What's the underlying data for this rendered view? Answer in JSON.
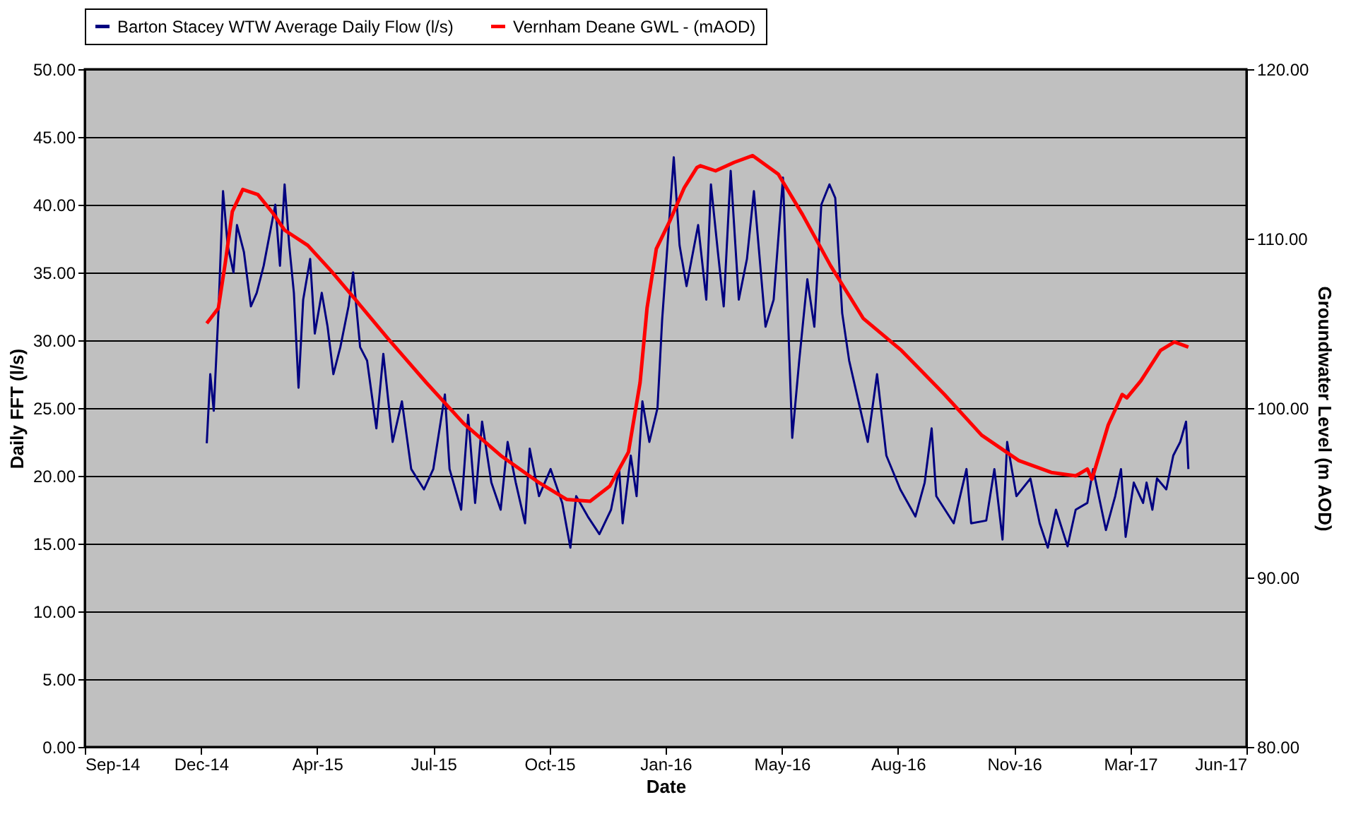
{
  "chart_data": {
    "type": "line",
    "xlabel": "Date",
    "ylabel": "Daily FFT (l/s)",
    "y2label": "Groundwater Level (m AOD)",
    "xlim": [
      "2014-09-15",
      "2017-06-11"
    ],
    "xticks": [
      {
        "value": "2014-09-15",
        "label": "Sep-14"
      },
      {
        "value": "2014-12-24",
        "label": "Dec-14"
      },
      {
        "value": "2015-04-03",
        "label": "Apr-15"
      },
      {
        "value": "2015-07-12",
        "label": "Jul-15"
      },
      {
        "value": "2015-10-20",
        "label": "Oct-15"
      },
      {
        "value": "2016-01-28",
        "label": "Jan-16"
      },
      {
        "value": "2016-05-07",
        "label": "May-16"
      },
      {
        "value": "2016-08-15",
        "label": "Aug-16"
      },
      {
        "value": "2016-11-23",
        "label": "Nov-16"
      },
      {
        "value": "2017-03-03",
        "label": "Mar-17"
      },
      {
        "value": "2017-06-11",
        "label": "Jun-17"
      }
    ],
    "ylim": [
      0,
      50
    ],
    "yticks": [
      {
        "value": 0,
        "label": "0.00"
      },
      {
        "value": 5,
        "label": "5.00"
      },
      {
        "value": 10,
        "label": "10.00"
      },
      {
        "value": 15,
        "label": "15.00"
      },
      {
        "value": 20,
        "label": "20.00"
      },
      {
        "value": 25,
        "label": "25.00"
      },
      {
        "value": 30,
        "label": "30.00"
      },
      {
        "value": 35,
        "label": "35.00"
      },
      {
        "value": 40,
        "label": "40.00"
      },
      {
        "value": 45,
        "label": "45.00"
      },
      {
        "value": 50,
        "label": "50.00"
      }
    ],
    "y2lim": [
      80,
      120
    ],
    "y2ticks": [
      {
        "value": 80,
        "label": "80.00"
      },
      {
        "value": 90,
        "label": "90.00"
      },
      {
        "value": 100,
        "label": "100.00"
      },
      {
        "value": 110,
        "label": "110.00"
      },
      {
        "value": 120,
        "label": "120.00"
      }
    ],
    "grid": "y",
    "legend": "top",
    "series": [
      {
        "name": "Barton Stacey WTW Average Daily Flow (l/s)",
        "color": "#000080",
        "x": [
          "2014-12-29",
          "2015-01-01",
          "2015-01-04",
          "2015-01-08",
          "2015-01-12",
          "2015-01-16",
          "2015-01-21",
          "2015-01-24",
          "2015-01-30",
          "2015-02-05",
          "2015-02-10",
          "2015-02-16",
          "2015-02-26",
          "2015-03-02",
          "2015-03-06",
          "2015-03-10",
          "2015-03-14",
          "2015-03-18",
          "2015-03-22",
          "2015-03-28",
          "2015-04-01",
          "2015-04-07",
          "2015-04-12",
          "2015-04-17",
          "2015-04-23",
          "2015-04-30",
          "2015-05-04",
          "2015-05-10",
          "2015-05-16",
          "2015-05-24",
          "2015-05-30",
          "2015-06-07",
          "2015-06-15",
          "2015-06-23",
          "2015-07-04",
          "2015-07-12",
          "2015-07-22",
          "2015-07-26",
          "2015-08-05",
          "2015-08-11",
          "2015-08-17",
          "2015-08-23",
          "2015-08-31",
          "2015-09-08",
          "2015-09-14",
          "2015-09-21",
          "2015-09-29",
          "2015-10-03",
          "2015-10-11",
          "2015-10-21",
          "2015-10-31",
          "2015-11-07",
          "2015-11-12",
          "2015-11-22",
          "2015-12-02",
          "2015-12-12",
          "2015-12-19",
          "2015-12-22",
          "2015-12-29",
          "2016-01-03",
          "2016-01-08",
          "2016-01-14",
          "2016-01-21",
          "2016-01-25",
          "2016-01-30",
          "2016-02-04",
          "2016-02-09",
          "2016-02-15",
          "2016-02-25",
          "2016-03-03",
          "2016-03-07",
          "2016-03-13",
          "2016-03-18",
          "2016-03-24",
          "2016-03-31",
          "2016-04-07",
          "2016-04-13",
          "2016-04-23",
          "2016-04-30",
          "2016-05-08",
          "2016-05-12",
          "2016-05-16",
          "2016-05-22",
          "2016-05-29",
          "2016-06-04",
          "2016-06-10",
          "2016-06-17",
          "2016-06-22",
          "2016-06-28",
          "2016-07-04",
          "2016-07-12",
          "2016-07-20",
          "2016-07-28",
          "2016-08-05",
          "2016-08-17",
          "2016-08-30",
          "2016-09-07",
          "2016-09-13",
          "2016-09-17",
          "2016-10-02",
          "2016-10-13",
          "2016-10-17",
          "2016-10-30",
          "2016-11-06",
          "2016-11-13",
          "2016-11-17",
          "2016-11-25",
          "2016-12-07",
          "2016-12-15",
          "2016-12-22",
          "2016-12-29",
          "2017-01-08",
          "2017-01-15",
          "2017-01-25",
          "2017-01-30",
          "2017-02-10",
          "2017-02-18",
          "2017-02-23",
          "2017-02-27",
          "2017-03-06",
          "2017-03-14",
          "2017-03-17",
          "2017-03-22",
          "2017-03-26",
          "2017-04-03",
          "2017-04-09",
          "2017-04-15",
          "2017-04-20",
          "2017-04-22"
        ],
        "values": [
          22.4,
          27.5,
          24.8,
          32,
          41,
          37,
          35,
          38.5,
          36.5,
          32.5,
          33.5,
          35.5,
          40,
          35.5,
          41.5,
          37,
          33.5,
          26.5,
          33,
          36,
          30.5,
          33.5,
          31,
          27.5,
          29.5,
          32.5,
          35,
          29.5,
          28.5,
          23.5,
          29,
          22.5,
          25.5,
          20.5,
          19,
          20.5,
          26,
          20.5,
          17.5,
          24.5,
          18,
          24,
          19.5,
          17.5,
          22.5,
          19.5,
          16.5,
          22,
          18.5,
          20.5,
          18,
          14.7,
          18.5,
          17,
          15.7,
          17.5,
          20.5,
          16.5,
          21.5,
          18.5,
          25.5,
          22.5,
          25,
          31.5,
          37.5,
          43.5,
          37,
          34,
          38.5,
          33,
          41.5,
          36.5,
          32.5,
          42.5,
          33,
          36,
          41,
          31,
          33,
          42,
          32.5,
          22.8,
          28.5,
          34.5,
          31,
          40,
          41.5,
          40.5,
          32,
          28.5,
          25.5,
          22.5,
          27.5,
          21.5,
          19,
          17,
          19.5,
          23.5,
          18.5,
          16.5,
          20.5,
          16.5,
          16.7,
          20.5,
          15.3,
          22.5,
          18.5,
          19.8,
          16.5,
          14.7,
          17.5,
          14.8,
          17.5,
          18,
          20.5,
          16,
          18.5,
          20.5,
          15.5,
          19.5,
          18,
          19.5,
          17.5,
          19.8,
          19,
          21.5,
          22.5,
          24,
          20.5
        ]
      },
      {
        "name": "Vernham Deane GWL - (mAOD)",
        "color": "#ff0000",
        "axis": "y2",
        "x": [
          "2014-12-29",
          "2015-01-08",
          "2015-01-14",
          "2015-01-20",
          "2015-01-29",
          "2015-02-11",
          "2015-02-24",
          "2015-03-06",
          "2015-03-26",
          "2015-04-15",
          "2015-05-06",
          "2015-06-03",
          "2015-07-06",
          "2015-08-07",
          "2015-09-08",
          "2015-10-11",
          "2015-11-04",
          "2015-11-24",
          "2015-12-11",
          "2015-12-27",
          "2016-01-06",
          "2016-01-12",
          "2016-01-20",
          "2016-02-01",
          "2016-02-13",
          "2016-02-24",
          "2016-02-27",
          "2016-03-11",
          "2016-03-27",
          "2016-04-12",
          "2016-05-04",
          "2016-05-25",
          "2016-06-18",
          "2016-07-16",
          "2016-08-18",
          "2016-09-24",
          "2016-10-26",
          "2016-11-27",
          "2016-12-25",
          "2017-01-15",
          "2017-01-25",
          "2017-01-29",
          "2017-02-12",
          "2017-02-24",
          "2017-02-28",
          "2017-03-12",
          "2017-03-29",
          "2017-04-10",
          "2017-04-22"
        ],
        "values": [
          105.0,
          105.9,
          108.6,
          111.6,
          112.9,
          112.6,
          111.5,
          110.5,
          109.6,
          108.1,
          106.4,
          104.1,
          101.5,
          99.1,
          97.2,
          95.6,
          94.6,
          94.5,
          95.4,
          97.4,
          101.5,
          105.9,
          109.4,
          111.1,
          113.0,
          114.2,
          114.3,
          114.0,
          114.5,
          114.9,
          113.8,
          111.4,
          108.4,
          105.3,
          103.4,
          100.8,
          98.4,
          96.9,
          96.2,
          96.0,
          96.4,
          95.8,
          99.0,
          100.8,
          100.6,
          101.6,
          103.4,
          103.9,
          103.6
        ]
      }
    ]
  }
}
